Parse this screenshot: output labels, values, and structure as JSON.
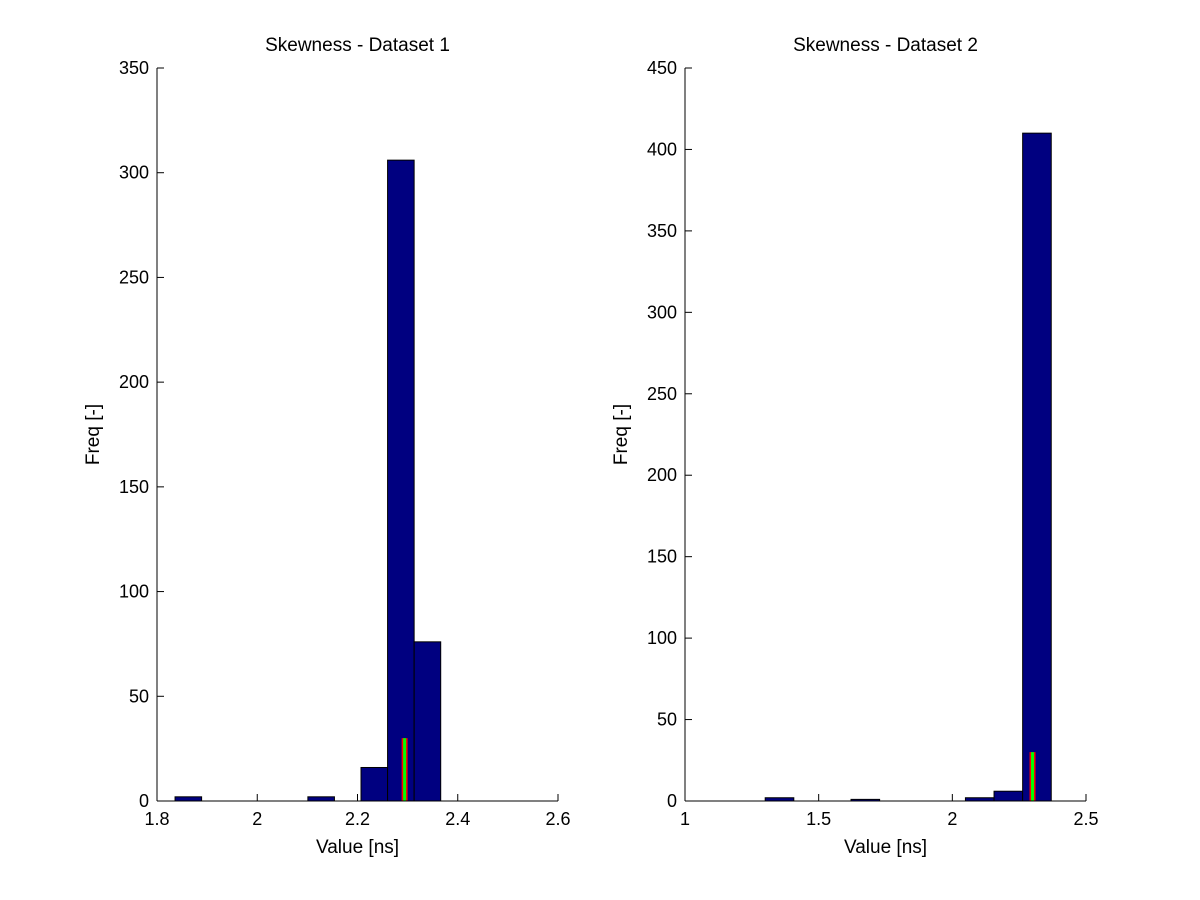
{
  "colors": {
    "bar_fill": "#000080",
    "bar_edge": "#000000",
    "marker_green": "#00ff00",
    "marker_red": "#ff0000",
    "axis": "#000000",
    "background": "#ffffff"
  },
  "chart_data": [
    {
      "type": "bar",
      "title": "Skewness - Dataset 1",
      "xlabel": "Value [ns]",
      "ylabel": "Freq [-]",
      "xlim": [
        1.8,
        2.6
      ],
      "ylim": [
        0,
        350
      ],
      "xticks": [
        "1.8",
        "2",
        "2.2",
        "2.4",
        "2.6"
      ],
      "yticks": [
        "0",
        "50",
        "100",
        "150",
        "200",
        "250",
        "300",
        "350"
      ],
      "grid": false,
      "bins": [
        {
          "x0": 1.836,
          "x1": 1.889,
          "value": 2
        },
        {
          "x0": 1.889,
          "x1": 1.942,
          "value": 0
        },
        {
          "x0": 1.942,
          "x1": 1.995,
          "value": 0
        },
        {
          "x0": 1.995,
          "x1": 2.048,
          "value": 0
        },
        {
          "x0": 2.048,
          "x1": 2.101,
          "value": 0
        },
        {
          "x0": 2.101,
          "x1": 2.154,
          "value": 2
        },
        {
          "x0": 2.154,
          "x1": 2.207,
          "value": 0
        },
        {
          "x0": 2.207,
          "x1": 2.26,
          "value": 16
        },
        {
          "x0": 2.26,
          "x1": 2.313,
          "value": 306
        },
        {
          "x0": 2.313,
          "x1": 2.366,
          "value": 76
        }
      ],
      "markers": [
        {
          "x": 2.294,
          "value": 30
        }
      ]
    },
    {
      "type": "bar",
      "title": "Skewness - Dataset 2",
      "xlabel": "Value [ns]",
      "ylabel": "Freq [-]",
      "xlim": [
        1,
        2.5
      ],
      "ylim": [
        0,
        450
      ],
      "xticks": [
        "1",
        "1.5",
        "2",
        "2.5"
      ],
      "yticks": [
        "0",
        "50",
        "100",
        "150",
        "200",
        "250",
        "300",
        "350",
        "400",
        "450"
      ],
      "grid": false,
      "bins": [
        {
          "x0": 1.3,
          "x1": 1.407,
          "value": 2
        },
        {
          "x0": 1.407,
          "x1": 1.514,
          "value": 0
        },
        {
          "x0": 1.514,
          "x1": 1.621,
          "value": 0
        },
        {
          "x0": 1.621,
          "x1": 1.728,
          "value": 1
        },
        {
          "x0": 1.728,
          "x1": 1.835,
          "value": 0
        },
        {
          "x0": 1.835,
          "x1": 1.942,
          "value": 0
        },
        {
          "x0": 1.942,
          "x1": 2.049,
          "value": 0
        },
        {
          "x0": 2.049,
          "x1": 2.156,
          "value": 2
        },
        {
          "x0": 2.156,
          "x1": 2.263,
          "value": 6
        },
        {
          "x0": 2.263,
          "x1": 2.37,
          "value": 410
        }
      ],
      "markers": [
        {
          "x": 2.3,
          "value": 30
        }
      ]
    }
  ]
}
